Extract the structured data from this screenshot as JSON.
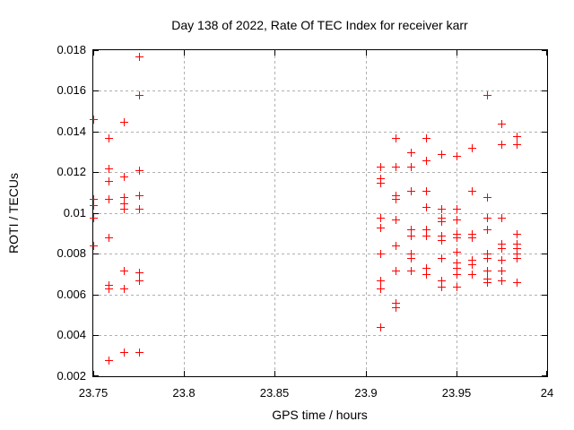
{
  "chart_data": {
    "type": "scatter",
    "title": "Day 138 of 2022, Rate Of TEC Index for receiver karr",
    "xlabel": "GPS time / hours",
    "ylabel": "ROTI / TECUs",
    "xlim": [
      23.75,
      24
    ],
    "ylim": [
      0.002,
      0.018
    ],
    "xticks": [
      23.75,
      23.8,
      23.85,
      23.9,
      23.95,
      24
    ],
    "xtick_labels": [
      "23.75",
      "23.8",
      "23.85",
      "23.9",
      "23.95",
      "24"
    ],
    "yticks": [
      0.002,
      0.004,
      0.006,
      0.008,
      0.01,
      0.012,
      0.014,
      0.016,
      0.018
    ],
    "ytick_labels": [
      "0.002",
      "0.004",
      "0.006",
      "0.008",
      "0.01",
      "0.012",
      "0.014",
      "0.016",
      "0.018"
    ],
    "grid": true,
    "legend": false,
    "marker": "plus",
    "colors": {
      "marker": "#ff0000",
      "grid": "#b0b0b0",
      "axis": "#000000",
      "background": "#ffffff"
    },
    "series": [
      {
        "name": "ROTI",
        "points": [
          [
            23.75,
            0.0146
          ],
          [
            23.75,
            0.0107
          ],
          [
            23.75,
            0.0104
          ],
          [
            23.75,
            0.0098
          ],
          [
            23.75,
            0.0084
          ],
          [
            23.7583,
            0.0137
          ],
          [
            23.7583,
            0.0122
          ],
          [
            23.7583,
            0.0116
          ],
          [
            23.7583,
            0.0107
          ],
          [
            23.7583,
            0.0088
          ],
          [
            23.7583,
            0.0065
          ],
          [
            23.7583,
            0.0063
          ],
          [
            23.7583,
            0.0028
          ],
          [
            23.7667,
            0.0145
          ],
          [
            23.7667,
            0.0118
          ],
          [
            23.7667,
            0.0108
          ],
          [
            23.7667,
            0.0105
          ],
          [
            23.7667,
            0.0102
          ],
          [
            23.7667,
            0.0072
          ],
          [
            23.7667,
            0.0063
          ],
          [
            23.7667,
            0.0032
          ],
          [
            23.775,
            0.0177
          ],
          [
            23.775,
            0.0158
          ],
          [
            23.775,
            0.0121
          ],
          [
            23.775,
            0.0109
          ],
          [
            23.775,
            0.0102
          ],
          [
            23.775,
            0.0071
          ],
          [
            23.775,
            0.0067
          ],
          [
            23.775,
            0.0032
          ],
          [
            23.9083,
            0.0123
          ],
          [
            23.9083,
            0.0117
          ],
          [
            23.9083,
            0.0115
          ],
          [
            23.9083,
            0.0098
          ],
          [
            23.9083,
            0.0093
          ],
          [
            23.9083,
            0.008
          ],
          [
            23.9083,
            0.0067
          ],
          [
            23.9083,
            0.0063
          ],
          [
            23.9083,
            0.0044
          ],
          [
            23.9167,
            0.0137
          ],
          [
            23.9167,
            0.0123
          ],
          [
            23.9167,
            0.0109
          ],
          [
            23.9167,
            0.0107
          ],
          [
            23.9167,
            0.0097
          ],
          [
            23.9167,
            0.0084
          ],
          [
            23.9167,
            0.0072
          ],
          [
            23.9167,
            0.0056
          ],
          [
            23.9167,
            0.0054
          ],
          [
            23.925,
            0.013
          ],
          [
            23.925,
            0.0123
          ],
          [
            23.925,
            0.0111
          ],
          [
            23.925,
            0.0092
          ],
          [
            23.925,
            0.0089
          ],
          [
            23.925,
            0.008
          ],
          [
            23.925,
            0.0078
          ],
          [
            23.925,
            0.0072
          ],
          [
            23.9333,
            0.0137
          ],
          [
            23.9333,
            0.0126
          ],
          [
            23.9333,
            0.0111
          ],
          [
            23.9333,
            0.0103
          ],
          [
            23.9333,
            0.0092
          ],
          [
            23.9333,
            0.0089
          ],
          [
            23.9333,
            0.0073
          ],
          [
            23.9333,
            0.007
          ],
          [
            23.9417,
            0.0129
          ],
          [
            23.9417,
            0.0102
          ],
          [
            23.9417,
            0.0098
          ],
          [
            23.9417,
            0.0096
          ],
          [
            23.9417,
            0.0089
          ],
          [
            23.9417,
            0.0087
          ],
          [
            23.9417,
            0.0078
          ],
          [
            23.9417,
            0.0067
          ],
          [
            23.9417,
            0.0064
          ],
          [
            23.95,
            0.0128
          ],
          [
            23.95,
            0.0102
          ],
          [
            23.95,
            0.0097
          ],
          [
            23.95,
            0.009
          ],
          [
            23.95,
            0.0088
          ],
          [
            23.95,
            0.0081
          ],
          [
            23.95,
            0.0076
          ],
          [
            23.95,
            0.0073
          ],
          [
            23.95,
            0.007
          ],
          [
            23.95,
            0.0064
          ],
          [
            23.9583,
            0.0132
          ],
          [
            23.9583,
            0.0111
          ],
          [
            23.9583,
            0.009
          ],
          [
            23.9583,
            0.0088
          ],
          [
            23.9583,
            0.0077
          ],
          [
            23.9583,
            0.0075
          ],
          [
            23.9583,
            0.007
          ],
          [
            23.9667,
            0.0158
          ],
          [
            23.9667,
            0.0108
          ],
          [
            23.9667,
            0.0098
          ],
          [
            23.9667,
            0.0092
          ],
          [
            23.9667,
            0.008
          ],
          [
            23.9667,
            0.0078
          ],
          [
            23.9667,
            0.0072
          ],
          [
            23.9667,
            0.0068
          ],
          [
            23.9667,
            0.0066
          ],
          [
            23.975,
            0.0144
          ],
          [
            23.975,
            0.0134
          ],
          [
            23.975,
            0.0098
          ],
          [
            23.975,
            0.0085
          ],
          [
            23.975,
            0.0083
          ],
          [
            23.975,
            0.0077
          ],
          [
            23.975,
            0.0072
          ],
          [
            23.975,
            0.0067
          ],
          [
            23.9833,
            0.0138
          ],
          [
            23.9833,
            0.0134
          ],
          [
            23.9833,
            0.009
          ],
          [
            23.9833,
            0.0085
          ],
          [
            23.9833,
            0.0083
          ],
          [
            23.9833,
            0.008
          ],
          [
            23.9833,
            0.0078
          ],
          [
            23.9833,
            0.0066
          ]
        ]
      }
    ]
  }
}
